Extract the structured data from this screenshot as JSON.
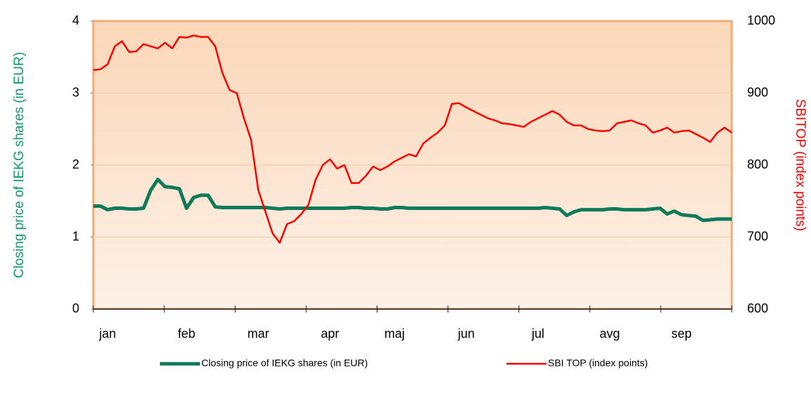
{
  "chart_data": {
    "type": "line",
    "y_label": "Closing price of IEKG shares (in EUR)",
    "y2_label": "SBITOP (index points)",
    "categories": [
      null,
      null,
      "jan",
      null,
      null,
      null,
      null,
      null,
      null,
      null,
      null,
      null,
      null,
      "feb",
      null,
      null,
      null,
      null,
      null,
      null,
      null,
      null,
      null,
      "mar",
      null,
      null,
      null,
      null,
      null,
      null,
      null,
      null,
      null,
      "apr",
      null,
      null,
      null,
      null,
      null,
      null,
      null,
      null,
      "maj",
      null,
      null,
      null,
      null,
      null,
      null,
      null,
      null,
      null,
      "jun",
      null,
      null,
      null,
      null,
      null,
      null,
      null,
      null,
      null,
      "jul",
      null,
      null,
      null,
      null,
      null,
      null,
      null,
      null,
      null,
      "avg",
      null,
      null,
      null,
      null,
      null,
      null,
      null,
      null,
      null,
      "sep",
      null,
      null,
      null,
      null,
      null,
      null,
      null
    ],
    "series": [
      {
        "name": "Closing price of IEKG shares (in EUR)",
        "color": "#0e7a5a",
        "axis": "y",
        "values": [
          1.43,
          1.43,
          1.38,
          1.4,
          1.4,
          1.39,
          1.39,
          1.4,
          1.65,
          1.8,
          1.7,
          1.69,
          1.67,
          1.4,
          1.55,
          1.58,
          1.58,
          1.42,
          1.41,
          1.41,
          1.41,
          1.41,
          1.41,
          1.41,
          1.41,
          1.4,
          1.39,
          1.4,
          1.4,
          1.4,
          1.4,
          1.4,
          1.4,
          1.4,
          1.4,
          1.4,
          1.41,
          1.41,
          1.4,
          1.4,
          1.39,
          1.39,
          1.41,
          1.41,
          1.4,
          1.4,
          1.4,
          1.4,
          1.4,
          1.4,
          1.4,
          1.4,
          1.4,
          1.4,
          1.4,
          1.4,
          1.4,
          1.4,
          1.4,
          1.4,
          1.4,
          1.4,
          1.4,
          1.41,
          1.4,
          1.39,
          1.3,
          1.35,
          1.38,
          1.38,
          1.38,
          1.38,
          1.39,
          1.39,
          1.38,
          1.38,
          1.38,
          1.38,
          1.39,
          1.4,
          1.32,
          1.36,
          1.31,
          1.3,
          1.29,
          1.23,
          1.24,
          1.25,
          1.25,
          1.25
        ]
      },
      {
        "name": "SBI TOP (index points)",
        "color": "#ff0000",
        "axis": "y2",
        "values": [
          932,
          933,
          940,
          965,
          972,
          957,
          958,
          968,
          965,
          962,
          970,
          962,
          978,
          977,
          980,
          978,
          978,
          965,
          928,
          904,
          900,
          865,
          835,
          765,
          735,
          705,
          692,
          718,
          722,
          732,
          745,
          780,
          800,
          808,
          795,
          800,
          775,
          775,
          785,
          798,
          793,
          798,
          805,
          810,
          815,
          812,
          830,
          838,
          845,
          855,
          885,
          886,
          880,
          875,
          870,
          865,
          862,
          858,
          857,
          855,
          853,
          860,
          865,
          870,
          875,
          870,
          860,
          855,
          855,
          850,
          848,
          847,
          848,
          858,
          860,
          862,
          858,
          855,
          845,
          848,
          852,
          845,
          847,
          848,
          843,
          838,
          832,
          845,
          852,
          845
        ]
      }
    ],
    "ylim": [
      0,
      4
    ],
    "yticks": [
      0,
      1,
      2,
      3,
      4
    ],
    "y2lim": [
      600,
      1000
    ],
    "y2ticks": [
      600,
      700,
      800,
      900,
      1000
    ],
    "grid": true,
    "legend": "bottom"
  }
}
